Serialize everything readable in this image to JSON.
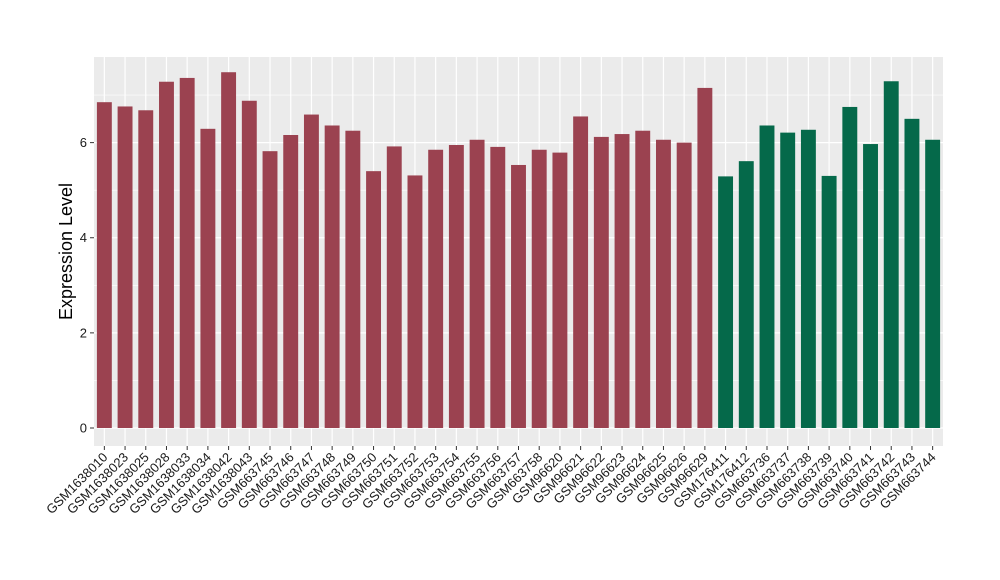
{
  "colors": {
    "panel_background": "#EBEBEB",
    "grid_major": "#FFFFFF",
    "tick_color": "#333333",
    "group_colors": [
      "#9B4250",
      "#05694A"
    ]
  },
  "chart_data": {
    "type": "bar",
    "title": "",
    "xlabel": "",
    "ylabel": "Expression Level",
    "ylim": [
      0,
      7.8
    ],
    "yticks": [
      0,
      2,
      4,
      6
    ],
    "grid": true,
    "legend": "none",
    "categories": [
      "GSM1638010",
      "GSM1638023",
      "GSM1638025",
      "GSM1638028",
      "GSM1638033",
      "GSM1638034",
      "GSM1638042",
      "GSM1638043",
      "GSM663745",
      "GSM663746",
      "GSM663747",
      "GSM663748",
      "GSM663749",
      "GSM663750",
      "GSM663751",
      "GSM663752",
      "GSM663753",
      "GSM663754",
      "GSM663755",
      "GSM663756",
      "GSM663757",
      "GSM663758",
      "GSM96620",
      "GSM96621",
      "GSM96622",
      "GSM96623",
      "GSM96624",
      "GSM96625",
      "GSM96626",
      "GSM96629",
      "GSM176411",
      "GSM176412",
      "GSM663736",
      "GSM663737",
      "GSM663738",
      "GSM663739",
      "GSM663740",
      "GSM663741",
      "GSM663742",
      "GSM663743",
      "GSM663744"
    ],
    "values": [
      6.85,
      6.76,
      6.68,
      7.28,
      7.36,
      6.29,
      7.48,
      6.88,
      5.82,
      6.16,
      6.59,
      6.36,
      6.25,
      5.4,
      5.92,
      5.31,
      5.85,
      5.95,
      6.06,
      5.91,
      5.53,
      5.85,
      5.79,
      6.55,
      6.12,
      6.18,
      6.25,
      6.06,
      6.0,
      7.15,
      5.29,
      5.61,
      6.36,
      6.21,
      6.27,
      5.3,
      6.75,
      5.97,
      7.29,
      6.5,
      6.06
    ],
    "groups": [
      0,
      0,
      0,
      0,
      0,
      0,
      0,
      0,
      0,
      0,
      0,
      0,
      0,
      0,
      0,
      0,
      0,
      0,
      0,
      0,
      0,
      0,
      0,
      0,
      0,
      0,
      0,
      0,
      0,
      0,
      1,
      1,
      1,
      1,
      1,
      1,
      1,
      1,
      1,
      1,
      1
    ]
  }
}
